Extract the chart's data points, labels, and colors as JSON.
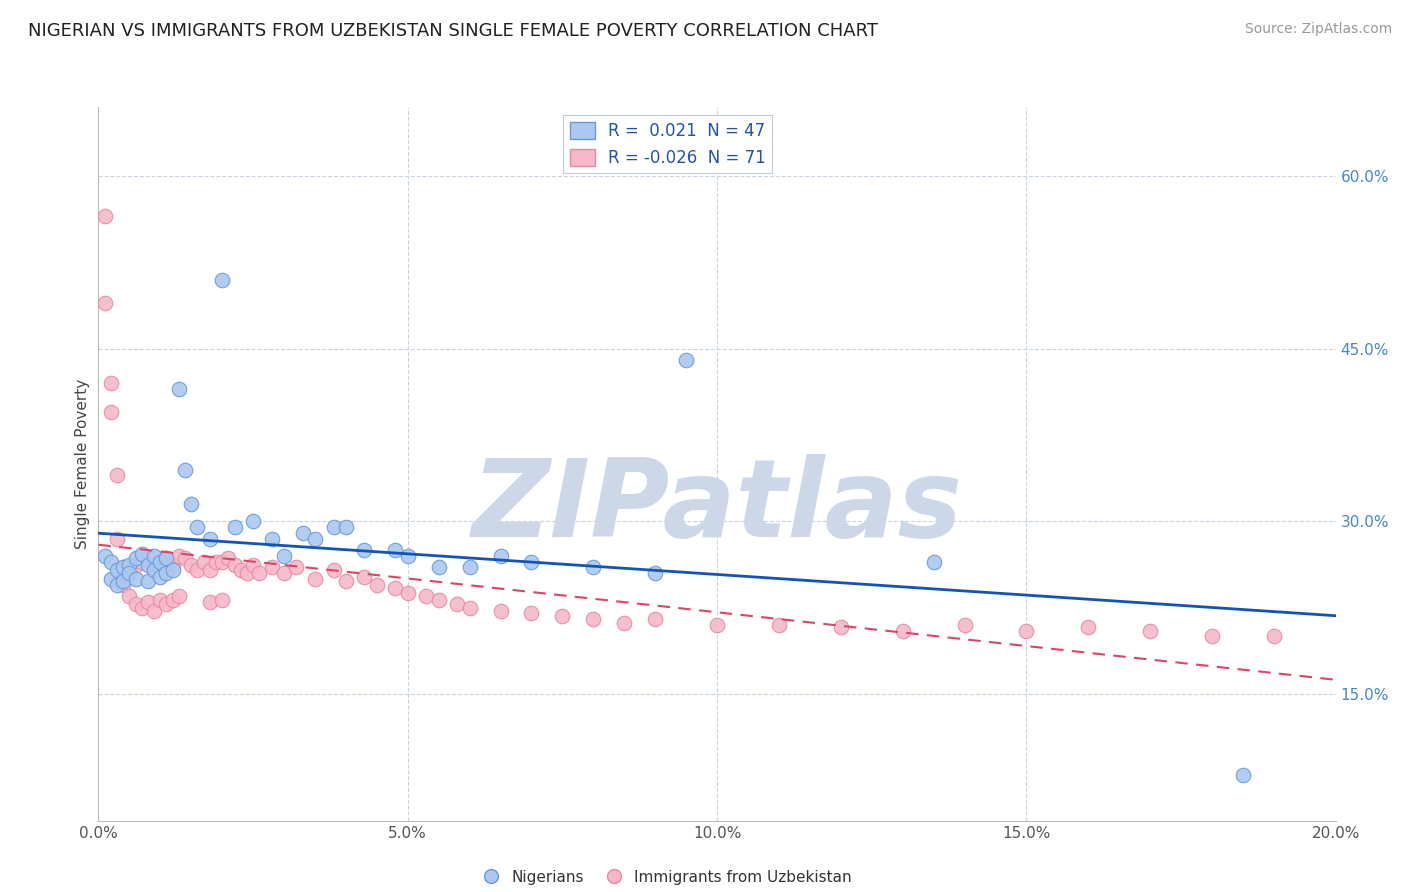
{
  "title": "NIGERIAN VS IMMIGRANTS FROM UZBEKISTAN SINGLE FEMALE POVERTY CORRELATION CHART",
  "source": "Source: ZipAtlas.com",
  "ylabel": "Single Female Poverty",
  "xlim": [
    0.0,
    0.2
  ],
  "ylim": [
    0.04,
    0.66
  ],
  "right_yticks": [
    0.15,
    0.3,
    0.45,
    0.6
  ],
  "right_yticklabels": [
    "15.0%",
    "30.0%",
    "45.0%",
    "60.0%"
  ],
  "xticks": [
    0.0,
    0.05,
    0.1,
    0.15,
    0.2
  ],
  "xticklabels": [
    "0.0%",
    "5.0%",
    "10.0%",
    "15.0%",
    "20.0%"
  ],
  "nigerians": {
    "label": "Nigerians",
    "R": 0.021,
    "N": 47,
    "dot_color": "#aac8f0",
    "edge_color": "#6699dd",
    "trend_color": "#1155bb",
    "x": [
      0.001,
      0.002,
      0.002,
      0.003,
      0.003,
      0.004,
      0.004,
      0.005,
      0.005,
      0.006,
      0.006,
      0.007,
      0.008,
      0.008,
      0.009,
      0.009,
      0.01,
      0.01,
      0.011,
      0.011,
      0.012,
      0.013,
      0.014,
      0.015,
      0.016,
      0.018,
      0.02,
      0.022,
      0.025,
      0.028,
      0.03,
      0.033,
      0.035,
      0.038,
      0.04,
      0.043,
      0.048,
      0.05,
      0.055,
      0.06,
      0.065,
      0.07,
      0.08,
      0.09,
      0.095,
      0.135,
      0.185
    ],
    "y": [
      0.27,
      0.265,
      0.25,
      0.258,
      0.245,
      0.26,
      0.248,
      0.262,
      0.255,
      0.268,
      0.25,
      0.272,
      0.262,
      0.248,
      0.258,
      0.27,
      0.265,
      0.252,
      0.255,
      0.268,
      0.258,
      0.415,
      0.345,
      0.315,
      0.295,
      0.285,
      0.51,
      0.295,
      0.3,
      0.285,
      0.27,
      0.29,
      0.285,
      0.295,
      0.295,
      0.275,
      0.275,
      0.27,
      0.26,
      0.26,
      0.27,
      0.265,
      0.26,
      0.255,
      0.44,
      0.265,
      0.08
    ]
  },
  "uzbekistan": {
    "label": "Immigrants from Uzbekistan",
    "R": -0.026,
    "N": 71,
    "dot_color": "#f5b8c8",
    "edge_color": "#e888a0",
    "trend_color": "#dd4466",
    "x": [
      0.001,
      0.001,
      0.002,
      0.002,
      0.003,
      0.003,
      0.004,
      0.004,
      0.005,
      0.005,
      0.006,
      0.006,
      0.007,
      0.007,
      0.008,
      0.008,
      0.009,
      0.009,
      0.01,
      0.01,
      0.011,
      0.011,
      0.012,
      0.012,
      0.013,
      0.013,
      0.014,
      0.015,
      0.016,
      0.017,
      0.018,
      0.018,
      0.019,
      0.02,
      0.02,
      0.021,
      0.022,
      0.023,
      0.024,
      0.025,
      0.026,
      0.028,
      0.03,
      0.032,
      0.035,
      0.038,
      0.04,
      0.043,
      0.045,
      0.048,
      0.05,
      0.053,
      0.055,
      0.058,
      0.06,
      0.065,
      0.07,
      0.075,
      0.08,
      0.085,
      0.09,
      0.1,
      0.11,
      0.12,
      0.13,
      0.14,
      0.15,
      0.16,
      0.17,
      0.18,
      0.19
    ],
    "y": [
      0.565,
      0.49,
      0.42,
      0.395,
      0.34,
      0.285,
      0.26,
      0.245,
      0.255,
      0.235,
      0.262,
      0.228,
      0.265,
      0.225,
      0.268,
      0.23,
      0.258,
      0.222,
      0.265,
      0.232,
      0.268,
      0.228,
      0.262,
      0.232,
      0.27,
      0.235,
      0.268,
      0.262,
      0.258,
      0.265,
      0.258,
      0.23,
      0.265,
      0.232,
      0.265,
      0.268,
      0.262,
      0.258,
      0.255,
      0.262,
      0.255,
      0.26,
      0.255,
      0.26,
      0.25,
      0.258,
      0.248,
      0.252,
      0.245,
      0.242,
      0.238,
      0.235,
      0.232,
      0.228,
      0.225,
      0.222,
      0.22,
      0.218,
      0.215,
      0.212,
      0.215,
      0.21,
      0.21,
      0.208,
      0.205,
      0.21,
      0.205,
      0.208,
      0.205,
      0.2,
      0.2
    ]
  },
  "watermark": "ZIPatlas",
  "watermark_color": "#ccd8e8",
  "background_color": "#ffffff",
  "grid_color": "#c8d4e0",
  "title_fontsize": 13,
  "axis_label_fontsize": 11,
  "tick_fontsize": 11,
  "source_fontsize": 10
}
